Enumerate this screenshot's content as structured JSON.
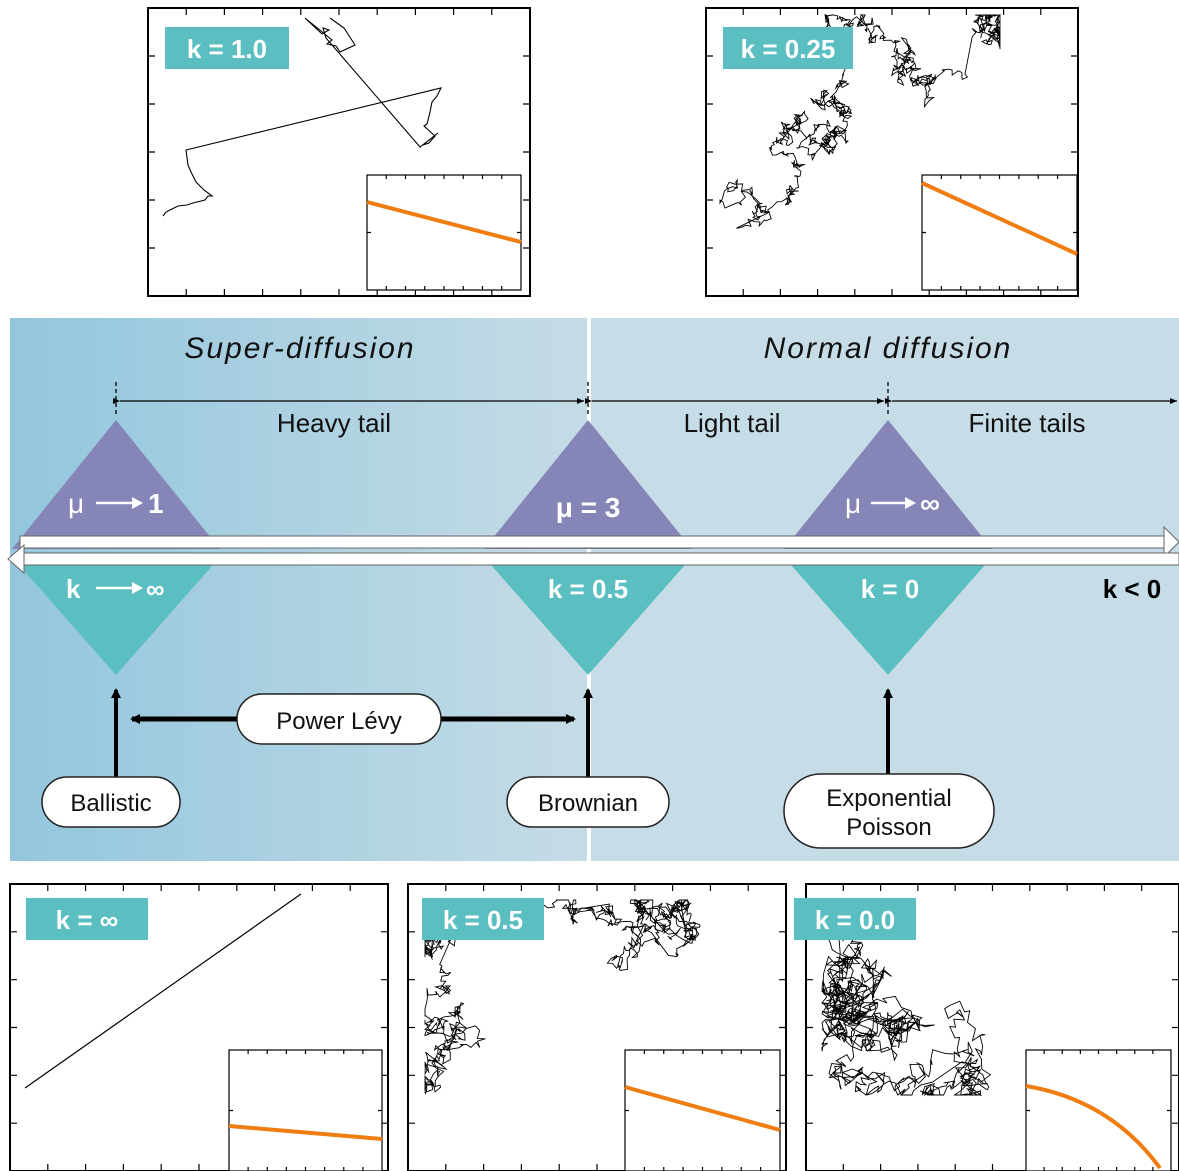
{
  "regimes": {
    "super": "Super-diffusion",
    "normal": "Normal diffusion"
  },
  "tails": {
    "heavy": "Heavy tail",
    "light": "Light tail",
    "finite": "Finite tails"
  },
  "mu_markers": [
    {
      "pre": "μ",
      "post": "1"
    },
    {
      "pre": "μ = 3",
      "post": ""
    },
    {
      "pre": "μ",
      "post": "∞"
    }
  ],
  "k_markers": [
    {
      "pre": "k",
      "post": "∞"
    },
    {
      "pre": "k = 0.5",
      "post": ""
    },
    {
      "pre": "k = 0",
      "post": ""
    }
  ],
  "k_negative": "k < 0",
  "labels": {
    "power_levy": "Power Lévy",
    "ballistic": "Ballistic",
    "brownian": "Brownian",
    "exponential": "Exponential",
    "poisson": "Poisson"
  },
  "panels": [
    {
      "label": "k = 1.0",
      "inset_trend": "linear"
    },
    {
      "label": "k = 0.25",
      "inset_trend": "linear"
    },
    {
      "label": "k = ∞",
      "inset_trend": "linear"
    },
    {
      "label": "k = 0.5",
      "inset_trend": "linear"
    },
    {
      "label": "k = 0.0",
      "inset_trend": "concave"
    }
  ],
  "colors": {
    "teal": "#5bbfc2",
    "purple": "#8585b8",
    "band_left": "#8fc4dc",
    "band_right": "#c3d8e2",
    "orange": "#ef7d11"
  }
}
